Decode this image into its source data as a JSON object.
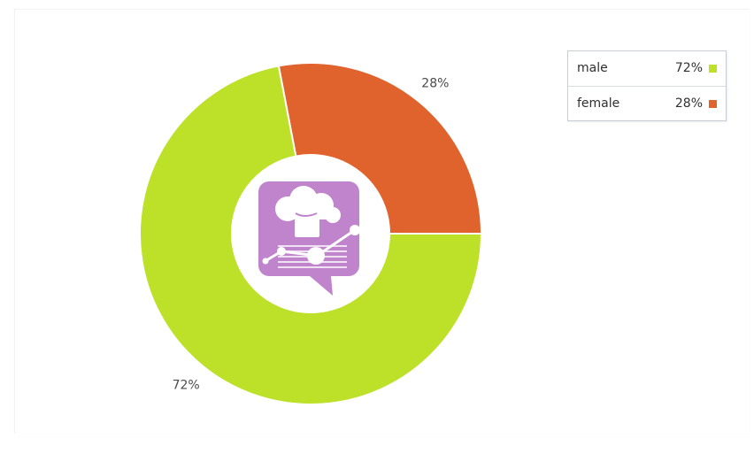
{
  "chart_data": {
    "type": "pie",
    "variant": "donut",
    "categories": [
      "male",
      "female"
    ],
    "values": [
      72,
      28
    ],
    "labels": [
      "72%",
      "28%"
    ],
    "colors": [
      "#bde029",
      "#e0622c"
    ],
    "legend_placement": "top-right",
    "center_icon": "chef-hat-analytics-icon",
    "center_icon_color": "#c084cc"
  },
  "legend": {
    "items": [
      {
        "name": "male",
        "value": "72%",
        "color": "#bde029"
      },
      {
        "name": "female",
        "value": "28%",
        "color": "#e0622c"
      }
    ]
  }
}
